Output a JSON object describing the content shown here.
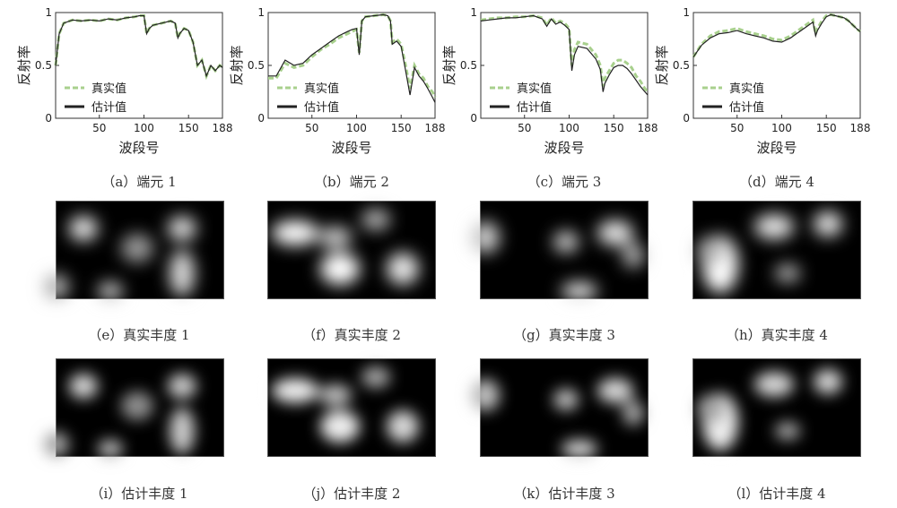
{
  "chart_data": [
    {
      "type": "line",
      "caption": "（a）端元 1",
      "xlabel": "波段号",
      "ylabel": "反射率",
      "xlim": [
        1,
        188
      ],
      "ylim": [
        0,
        1
      ],
      "xticks": [
        50,
        100,
        150,
        188
      ],
      "yticks": [
        0,
        0.5,
        1
      ],
      "legend": {
        "position": "bottom-left",
        "entries": [
          "真实值",
          "估计值"
        ]
      },
      "x": [
        1,
        5,
        10,
        20,
        30,
        40,
        50,
        60,
        70,
        80,
        90,
        95,
        100,
        103,
        106,
        110,
        120,
        130,
        135,
        138,
        140,
        145,
        150,
        155,
        160,
        165,
        170,
        175,
        180,
        185,
        188
      ],
      "series": [
        {
          "name": "真实值",
          "style": "dashed",
          "values": [
            0.5,
            0.8,
            0.9,
            0.93,
            0.92,
            0.93,
            0.92,
            0.94,
            0.93,
            0.95,
            0.96,
            0.97,
            0.97,
            0.8,
            0.85,
            0.88,
            0.9,
            0.92,
            0.9,
            0.76,
            0.8,
            0.85,
            0.83,
            0.72,
            0.5,
            0.55,
            0.4,
            0.5,
            0.45,
            0.5,
            0.48
          ]
        },
        {
          "name": "估计值",
          "style": "solid",
          "values": [
            0.5,
            0.8,
            0.9,
            0.93,
            0.92,
            0.93,
            0.92,
            0.94,
            0.93,
            0.95,
            0.96,
            0.97,
            0.97,
            0.8,
            0.85,
            0.88,
            0.9,
            0.92,
            0.9,
            0.76,
            0.8,
            0.85,
            0.83,
            0.72,
            0.5,
            0.55,
            0.4,
            0.5,
            0.45,
            0.5,
            0.48
          ]
        }
      ]
    },
    {
      "type": "line",
      "caption": "（b）端元 2",
      "xlabel": "波段号",
      "ylabel": "反射率",
      "xlim": [
        1,
        188
      ],
      "ylim": [
        0,
        1
      ],
      "xticks": [
        50,
        100,
        150,
        188
      ],
      "yticks": [
        0,
        0.5,
        1
      ],
      "legend": {
        "position": "bottom-left",
        "entries": [
          "真实值",
          "估计值"
        ]
      },
      "x": [
        1,
        10,
        20,
        30,
        40,
        50,
        60,
        70,
        80,
        90,
        95,
        100,
        103,
        106,
        110,
        120,
        130,
        135,
        138,
        140,
        145,
        150,
        155,
        160,
        165,
        170,
        175,
        180,
        185,
        188
      ],
      "series": [
        {
          "name": "真实值",
          "style": "dashed",
          "values": [
            0.38,
            0.38,
            0.52,
            0.48,
            0.5,
            0.58,
            0.65,
            0.7,
            0.76,
            0.8,
            0.82,
            0.84,
            0.62,
            0.92,
            0.96,
            0.97,
            0.98,
            0.97,
            0.92,
            0.72,
            0.75,
            0.7,
            0.5,
            0.28,
            0.5,
            0.42,
            0.38,
            0.3,
            0.25,
            0.2
          ]
        },
        {
          "name": "估计值",
          "style": "solid",
          "values": [
            0.4,
            0.4,
            0.55,
            0.5,
            0.52,
            0.6,
            0.66,
            0.72,
            0.78,
            0.82,
            0.84,
            0.85,
            0.6,
            0.92,
            0.96,
            0.97,
            0.98,
            0.97,
            0.92,
            0.7,
            0.73,
            0.68,
            0.45,
            0.22,
            0.48,
            0.4,
            0.35,
            0.28,
            0.2,
            0.15
          ]
        }
      ]
    },
    {
      "type": "line",
      "caption": "（c）端元 3",
      "xlabel": "波段号",
      "ylabel": "反射率",
      "xlim": [
        1,
        188
      ],
      "ylim": [
        0,
        1
      ],
      "xticks": [
        50,
        100,
        150,
        188
      ],
      "yticks": [
        0,
        0.5,
        1
      ],
      "legend": {
        "position": "bottom-left",
        "entries": [
          "真实值",
          "估计值"
        ]
      },
      "x": [
        1,
        10,
        20,
        30,
        40,
        50,
        60,
        70,
        75,
        80,
        85,
        90,
        95,
        100,
        103,
        106,
        110,
        120,
        130,
        135,
        138,
        140,
        145,
        150,
        155,
        160,
        165,
        170,
        175,
        180,
        185,
        188
      ],
      "series": [
        {
          "name": "真实值",
          "style": "dashed",
          "values": [
            0.93,
            0.94,
            0.95,
            0.95,
            0.96,
            0.96,
            0.97,
            0.95,
            0.88,
            0.95,
            0.9,
            0.92,
            0.9,
            0.85,
            0.5,
            0.65,
            0.72,
            0.7,
            0.6,
            0.5,
            0.3,
            0.38,
            0.45,
            0.52,
            0.55,
            0.55,
            0.52,
            0.48,
            0.4,
            0.35,
            0.28,
            0.25
          ]
        },
        {
          "name": "估计值",
          "style": "solid",
          "values": [
            0.92,
            0.93,
            0.94,
            0.95,
            0.95,
            0.96,
            0.97,
            0.94,
            0.87,
            0.94,
            0.89,
            0.91,
            0.88,
            0.84,
            0.45,
            0.6,
            0.68,
            0.66,
            0.56,
            0.46,
            0.25,
            0.33,
            0.41,
            0.48,
            0.5,
            0.5,
            0.47,
            0.42,
            0.36,
            0.3,
            0.25,
            0.22
          ]
        }
      ]
    },
    {
      "type": "line",
      "caption": "（d）端元 4",
      "xlabel": "波段号",
      "ylabel": "反射率",
      "xlim": [
        1,
        188
      ],
      "ylim": [
        0,
        1
      ],
      "xticks": [
        50,
        100,
        150,
        188
      ],
      "yticks": [
        0,
        0.5,
        1
      ],
      "legend": {
        "position": "bottom-left",
        "entries": [
          "真实值",
          "估计值"
        ]
      },
      "x": [
        1,
        10,
        20,
        30,
        40,
        50,
        60,
        70,
        80,
        90,
        100,
        110,
        120,
        130,
        135,
        138,
        140,
        145,
        150,
        155,
        160,
        165,
        170,
        175,
        180,
        185,
        188
      ],
      "series": [
        {
          "name": "真实值",
          "style": "dashed",
          "values": [
            0.58,
            0.7,
            0.78,
            0.82,
            0.83,
            0.85,
            0.82,
            0.8,
            0.78,
            0.75,
            0.74,
            0.78,
            0.84,
            0.9,
            0.93,
            0.8,
            0.85,
            0.92,
            0.97,
            0.98,
            0.97,
            0.96,
            0.95,
            0.92,
            0.88,
            0.84,
            0.82
          ]
        },
        {
          "name": "估计值",
          "style": "solid",
          "values": [
            0.58,
            0.69,
            0.76,
            0.8,
            0.81,
            0.83,
            0.8,
            0.78,
            0.76,
            0.73,
            0.72,
            0.76,
            0.82,
            0.88,
            0.91,
            0.78,
            0.83,
            0.9,
            0.96,
            0.98,
            0.97,
            0.96,
            0.95,
            0.92,
            0.88,
            0.84,
            0.82
          ]
        }
      ]
    },
    {
      "type": "heatmap",
      "caption": "（e）真实丰度 1"
    },
    {
      "type": "heatmap",
      "caption": "（f）真实丰度 2"
    },
    {
      "type": "heatmap",
      "caption": "（g）真实丰度 3"
    },
    {
      "type": "heatmap",
      "caption": "（h）真实丰度 4"
    },
    {
      "type": "heatmap",
      "caption": "（i）估计丰度 1"
    },
    {
      "type": "heatmap",
      "caption": "（j）估计丰度 2"
    },
    {
      "type": "heatmap",
      "caption": "（k）估计丰度 3"
    },
    {
      "type": "heatmap",
      "caption": "（l）估计丰度 4"
    }
  ],
  "colors": {
    "true_series": "#a8d08d",
    "estimated_series": "#222222"
  }
}
